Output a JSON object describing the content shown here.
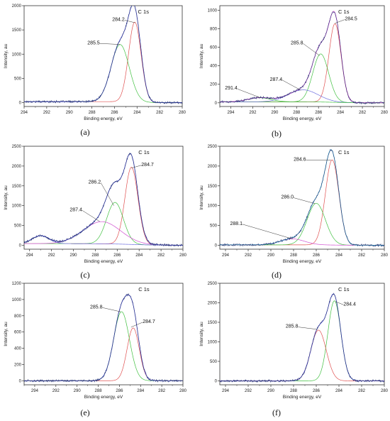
{
  "chart_data": [
    {
      "type": "line",
      "panel": "a",
      "caption": "(a)",
      "title": "C 1s",
      "xlabel": "Binding energy, eV",
      "ylabel": "Intensity, au",
      "xlim": [
        294,
        280
      ],
      "ylim": [
        -80,
        2000
      ],
      "xticks": [
        294,
        292,
        290,
        288,
        286,
        284,
        282,
        280
      ],
      "yticks": [
        0,
        500,
        1000,
        1500,
        2000
      ],
      "peaks": [
        {
          "center": 284.2,
          "height": 1650,
          "fwhm": 1.3,
          "color": "#e05050"
        },
        {
          "center": 285.5,
          "height": 1180,
          "fwhm": 1.9,
          "color": "#40c040"
        }
      ],
      "background": {
        "left": 20,
        "right": 0,
        "slope_width": 1.5
      },
      "envelope_color": "#5050e0",
      "annotations": [
        {
          "text": "284.2",
          "x": 284.2,
          "y": 1650,
          "tx": 285.1,
          "ty": 1700
        },
        {
          "text": "285.5",
          "x": 285.5,
          "y": 1200,
          "tx": 287.3,
          "ty": 1220
        }
      ]
    },
    {
      "type": "line",
      "panel": "b",
      "caption": "(b)",
      "title": "C 1s",
      "xlabel": "Binding energy, eV",
      "ylabel": "Intensity, au",
      "xlim": [
        295,
        280
      ],
      "ylim": [
        -40,
        1050
      ],
      "xticks": [
        294,
        292,
        290,
        288,
        286,
        284,
        282,
        280
      ],
      "yticks": [
        0,
        200,
        400,
        600,
        800,
        1000
      ],
      "peaks": [
        {
          "center": 284.5,
          "height": 850,
          "fwhm": 1.3,
          "color": "#e05050"
        },
        {
          "center": 285.8,
          "height": 520,
          "fwhm": 1.7,
          "color": "#40c040"
        },
        {
          "center": 287.4,
          "height": 130,
          "fwhm": 3.2,
          "color": "#7070e0"
        },
        {
          "center": 291.4,
          "height": 45,
          "fwhm": 2.5,
          "color": "#40c040"
        }
      ],
      "background": {
        "left": 10,
        "right": 0,
        "slope_width": 2
      },
      "envelope_color": "#d040d0",
      "annotations": [
        {
          "text": "284.5",
          "x": 284.5,
          "y": 860,
          "tx": 283.6,
          "ty": 900
        },
        {
          "text": "285.8",
          "x": 285.9,
          "y": 510,
          "tx": 287.4,
          "ty": 640
        },
        {
          "text": "287.4",
          "x": 287.6,
          "y": 135,
          "tx": 289.3,
          "ty": 245
        },
        {
          "text": "291.4",
          "x": 291.3,
          "y": 55,
          "tx": 293.4,
          "ty": 150
        }
      ]
    },
    {
      "type": "line",
      "panel": "c",
      "caption": "(c)",
      "title": "C 1s",
      "xlabel": "Binding energy, eV",
      "ylabel": "Intensity, au",
      "xlim": [
        294.5,
        280
      ],
      "ylim": [
        -100,
        2500
      ],
      "xticks": [
        294,
        292,
        290,
        288,
        286,
        284,
        282,
        280
      ],
      "yticks": [
        0,
        500,
        1000,
        1500,
        2000,
        2500
      ],
      "peaks": [
        {
          "center": 284.7,
          "height": 1950,
          "fwhm": 1.4,
          "color": "#e05050"
        },
        {
          "center": 286.2,
          "height": 1050,
          "fwhm": 1.8,
          "color": "#40c040"
        },
        {
          "center": 287.4,
          "height": 560,
          "fwhm": 4.0,
          "color": "#d050d0"
        },
        {
          "center": 293.0,
          "height": 200,
          "fwhm": 1.8,
          "color": "#7070e0"
        }
      ],
      "background": {
        "left": 40,
        "right": 0,
        "slope_width": 3
      },
      "envelope_color": "#5050e0",
      "annotations": [
        {
          "text": "284.7",
          "x": 284.7,
          "y": 1950,
          "tx": 283.8,
          "ty": 2020
        },
        {
          "text": "286.2",
          "x": 286.3,
          "y": 1000,
          "tx": 287.5,
          "ty": 1580
        },
        {
          "text": "287.4",
          "x": 287.6,
          "y": 600,
          "tx": 289.2,
          "ty": 880
        }
      ]
    },
    {
      "type": "line",
      "panel": "d",
      "caption": "(d)",
      "title": "C 1s",
      "xlabel": "Binding energy, eV",
      "ylabel": "Intensity, au",
      "xlim": [
        294.5,
        280
      ],
      "ylim": [
        -100,
        2500
      ],
      "xticks": [
        294,
        292,
        290,
        288,
        286,
        284,
        282,
        280
      ],
      "yticks": [
        0,
        500,
        1000,
        1500,
        2000,
        2500
      ],
      "peaks": [
        {
          "center": 284.6,
          "height": 2150,
          "fwhm": 1.4,
          "color": "#e05050"
        },
        {
          "center": 286.0,
          "height": 1050,
          "fwhm": 1.9,
          "color": "#40c040"
        },
        {
          "center": 288.1,
          "height": 150,
          "fwhm": 2.5,
          "color": "#d050d0"
        }
      ],
      "background": {
        "left": 10,
        "right": 0,
        "slope_width": 2
      },
      "envelope_color": "#30b0d0",
      "annotations": [
        {
          "text": "284.6",
          "x": 284.7,
          "y": 2150,
          "tx": 286.9,
          "ty": 2150
        },
        {
          "text": "286.0",
          "x": 286.1,
          "y": 1050,
          "tx": 288.0,
          "ty": 1200
        },
        {
          "text": "288.1",
          "x": 288.1,
          "y": 160,
          "tx": 292.5,
          "ty": 530
        }
      ]
    },
    {
      "type": "line",
      "panel": "e",
      "caption": "(e)",
      "title": "C 1s",
      "xlabel": "Binding energy, eV",
      "ylabel": "Intensity, au",
      "xlim": [
        295,
        280
      ],
      "ylim": [
        -50,
        1200
      ],
      "xticks": [
        294,
        292,
        290,
        288,
        286,
        284,
        282,
        280
      ],
      "yticks": [
        0,
        200,
        400,
        600,
        800,
        1000,
        1200
      ],
      "peaks": [
        {
          "center": 284.7,
          "height": 650,
          "fwhm": 1.35,
          "color": "#e05050"
        },
        {
          "center": 285.8,
          "height": 850,
          "fwhm": 1.75,
          "color": "#40c040"
        }
      ],
      "background": {
        "left": 0,
        "right": 0,
        "slope_width": 2
      },
      "envelope_color": "#5050e0",
      "annotations": [
        {
          "text": "285.8",
          "x": 285.9,
          "y": 850,
          "tx": 287.6,
          "ty": 900
        },
        {
          "text": "284.7",
          "x": 284.9,
          "y": 660,
          "tx": 283.8,
          "ty": 720
        }
      ]
    },
    {
      "type": "line",
      "panel": "f",
      "caption": "(f)",
      "title": "C 1s",
      "xlabel": "Binding energy, eV",
      "ylabel": "Intensity, au",
      "xlim": [
        294.5,
        280
      ],
      "ylim": [
        -100,
        2500
      ],
      "xticks": [
        294,
        292,
        290,
        288,
        286,
        284,
        282,
        280
      ],
      "yticks": [
        0,
        500,
        1000,
        1500,
        2000,
        2500
      ],
      "peaks": [
        {
          "center": 284.4,
          "height": 2050,
          "fwhm": 1.35,
          "color": "#40c040"
        },
        {
          "center": 285.8,
          "height": 1300,
          "fwhm": 1.6,
          "color": "#e05050"
        }
      ],
      "background": {
        "left": 0,
        "right": 0,
        "slope_width": 2
      },
      "envelope_color": "#5050e0",
      "annotations": [
        {
          "text": "284.4",
          "x": 284.3,
          "y": 2030,
          "tx": 283.6,
          "ty": 1950
        },
        {
          "text": "285.8",
          "x": 285.9,
          "y": 1320,
          "tx": 287.6,
          "ty": 1380
        }
      ]
    }
  ]
}
